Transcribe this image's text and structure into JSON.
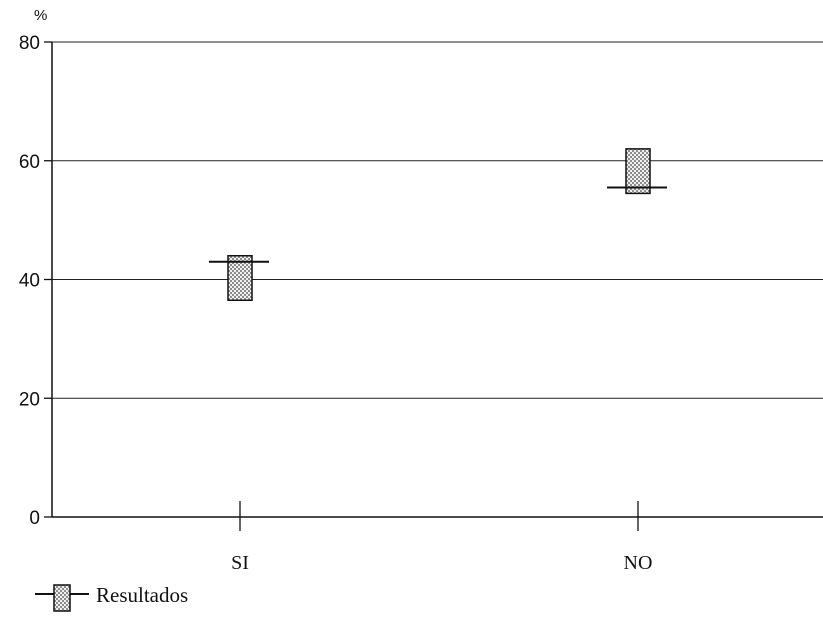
{
  "chart_data": {
    "type": "range",
    "ylabel": "%",
    "ylim": [
      0,
      80
    ],
    "yticks": [
      0,
      20,
      40,
      60,
      80
    ],
    "categories": [
      "SI",
      "NO"
    ],
    "series": [
      {
        "name": "Resultados",
        "points": [
          {
            "category": "SI",
            "value": 43,
            "low": 36.5,
            "high": 44
          },
          {
            "category": "NO",
            "value": 55.5,
            "low": 54.5,
            "high": 62
          }
        ]
      }
    ],
    "grid": true,
    "legend": "bottom-left",
    "colors": {
      "axis": "#111111",
      "grid": "#222222",
      "box_fill": "#9a9a9a",
      "box_dot": "#f2f2f2"
    }
  }
}
